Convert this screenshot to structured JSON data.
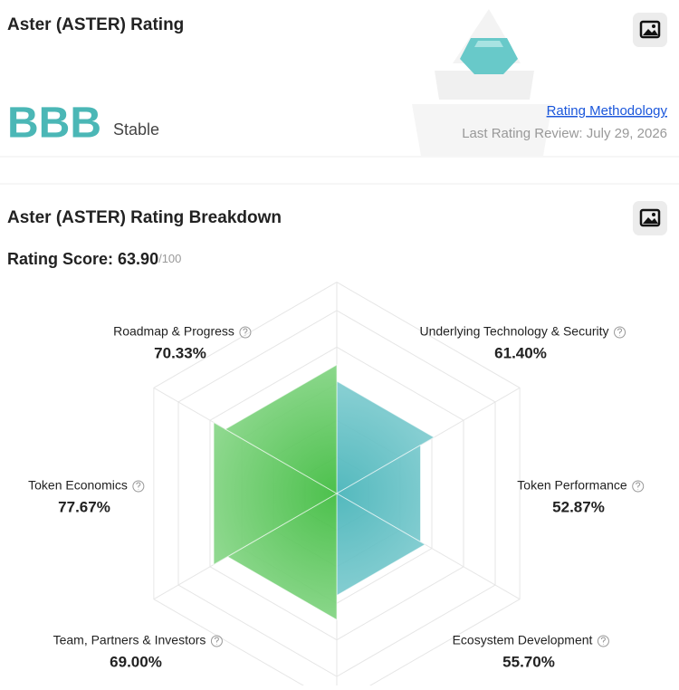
{
  "header": {
    "title": "Aster (ASTER) Rating",
    "grade": "BBB",
    "outlook": "Stable",
    "methodology_link": "Rating Methodology",
    "last_review": "Last Rating Review: July 29, 2026"
  },
  "breakdown": {
    "title": "Aster (ASTER) Rating Breakdown",
    "score_label": "Rating Score: ",
    "score": "63.90",
    "score_max": "/100"
  },
  "chart_data": {
    "type": "radar",
    "categories": [
      "Underlying Technology & Security",
      "Token Performance",
      "Ecosystem Development",
      "Team, Partners & Investors",
      "Token Economics",
      "Roadmap & Progress"
    ],
    "values": [
      61.4,
      52.87,
      55.7,
      69.0,
      77.67,
      70.33
    ],
    "value_labels": [
      "61.40%",
      "52.87%",
      "55.70%",
      "69.00%",
      "77.67%",
      "70.33%"
    ],
    "colors": [
      "#5bbfc3",
      "#5bbfc3",
      "#5bbfc3",
      "#4cc24c",
      "#4cc24c",
      "#4cc24c"
    ],
    "ylim": [
      0,
      100
    ]
  }
}
